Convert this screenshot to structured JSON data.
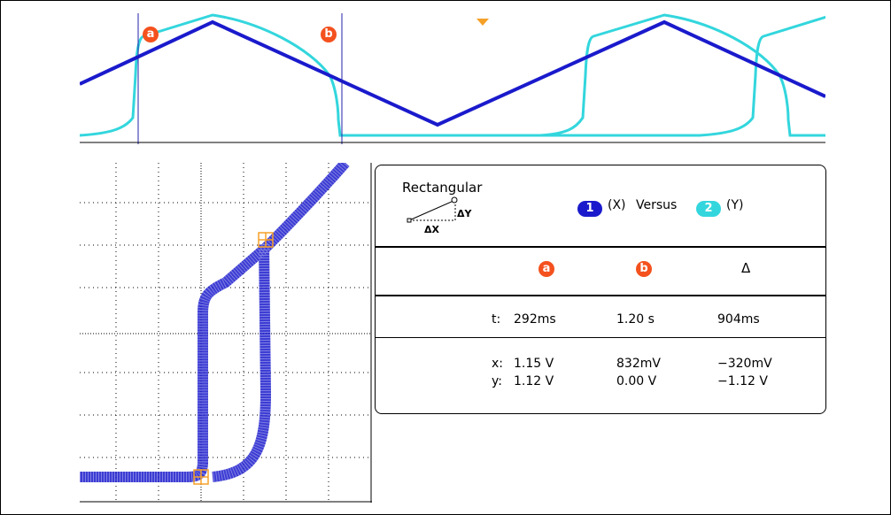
{
  "colors": {
    "ch1": "#1a1acc",
    "ch2": "#33d6dd",
    "cursor": "#f4511e",
    "trigger": "#f5a028",
    "cursor_line": "#2222aa"
  },
  "cursors": {
    "a_label": "a",
    "b_label": "b"
  },
  "readout": {
    "mode": "Rectangular",
    "delta_x_label": "ΔX",
    "delta_y_label": "ΔY",
    "ch1_number": "1",
    "ch2_number": "2",
    "x_tag": "(X)",
    "versus": "Versus",
    "y_tag": "(Y)",
    "col_a": "a",
    "col_b": "b",
    "col_delta": "Δ",
    "rows": [
      {
        "label": "t:",
        "a": "292ms",
        "b": "1.20 s",
        "delta": "904ms"
      },
      {
        "label": "x:",
        "a": "1.15 V",
        "b": "832mV",
        "delta": "−320mV"
      },
      {
        "label": "y:",
        "a": "1.12 V",
        "b": "0.00 V",
        "delta": "−1.12 V"
      }
    ]
  }
}
